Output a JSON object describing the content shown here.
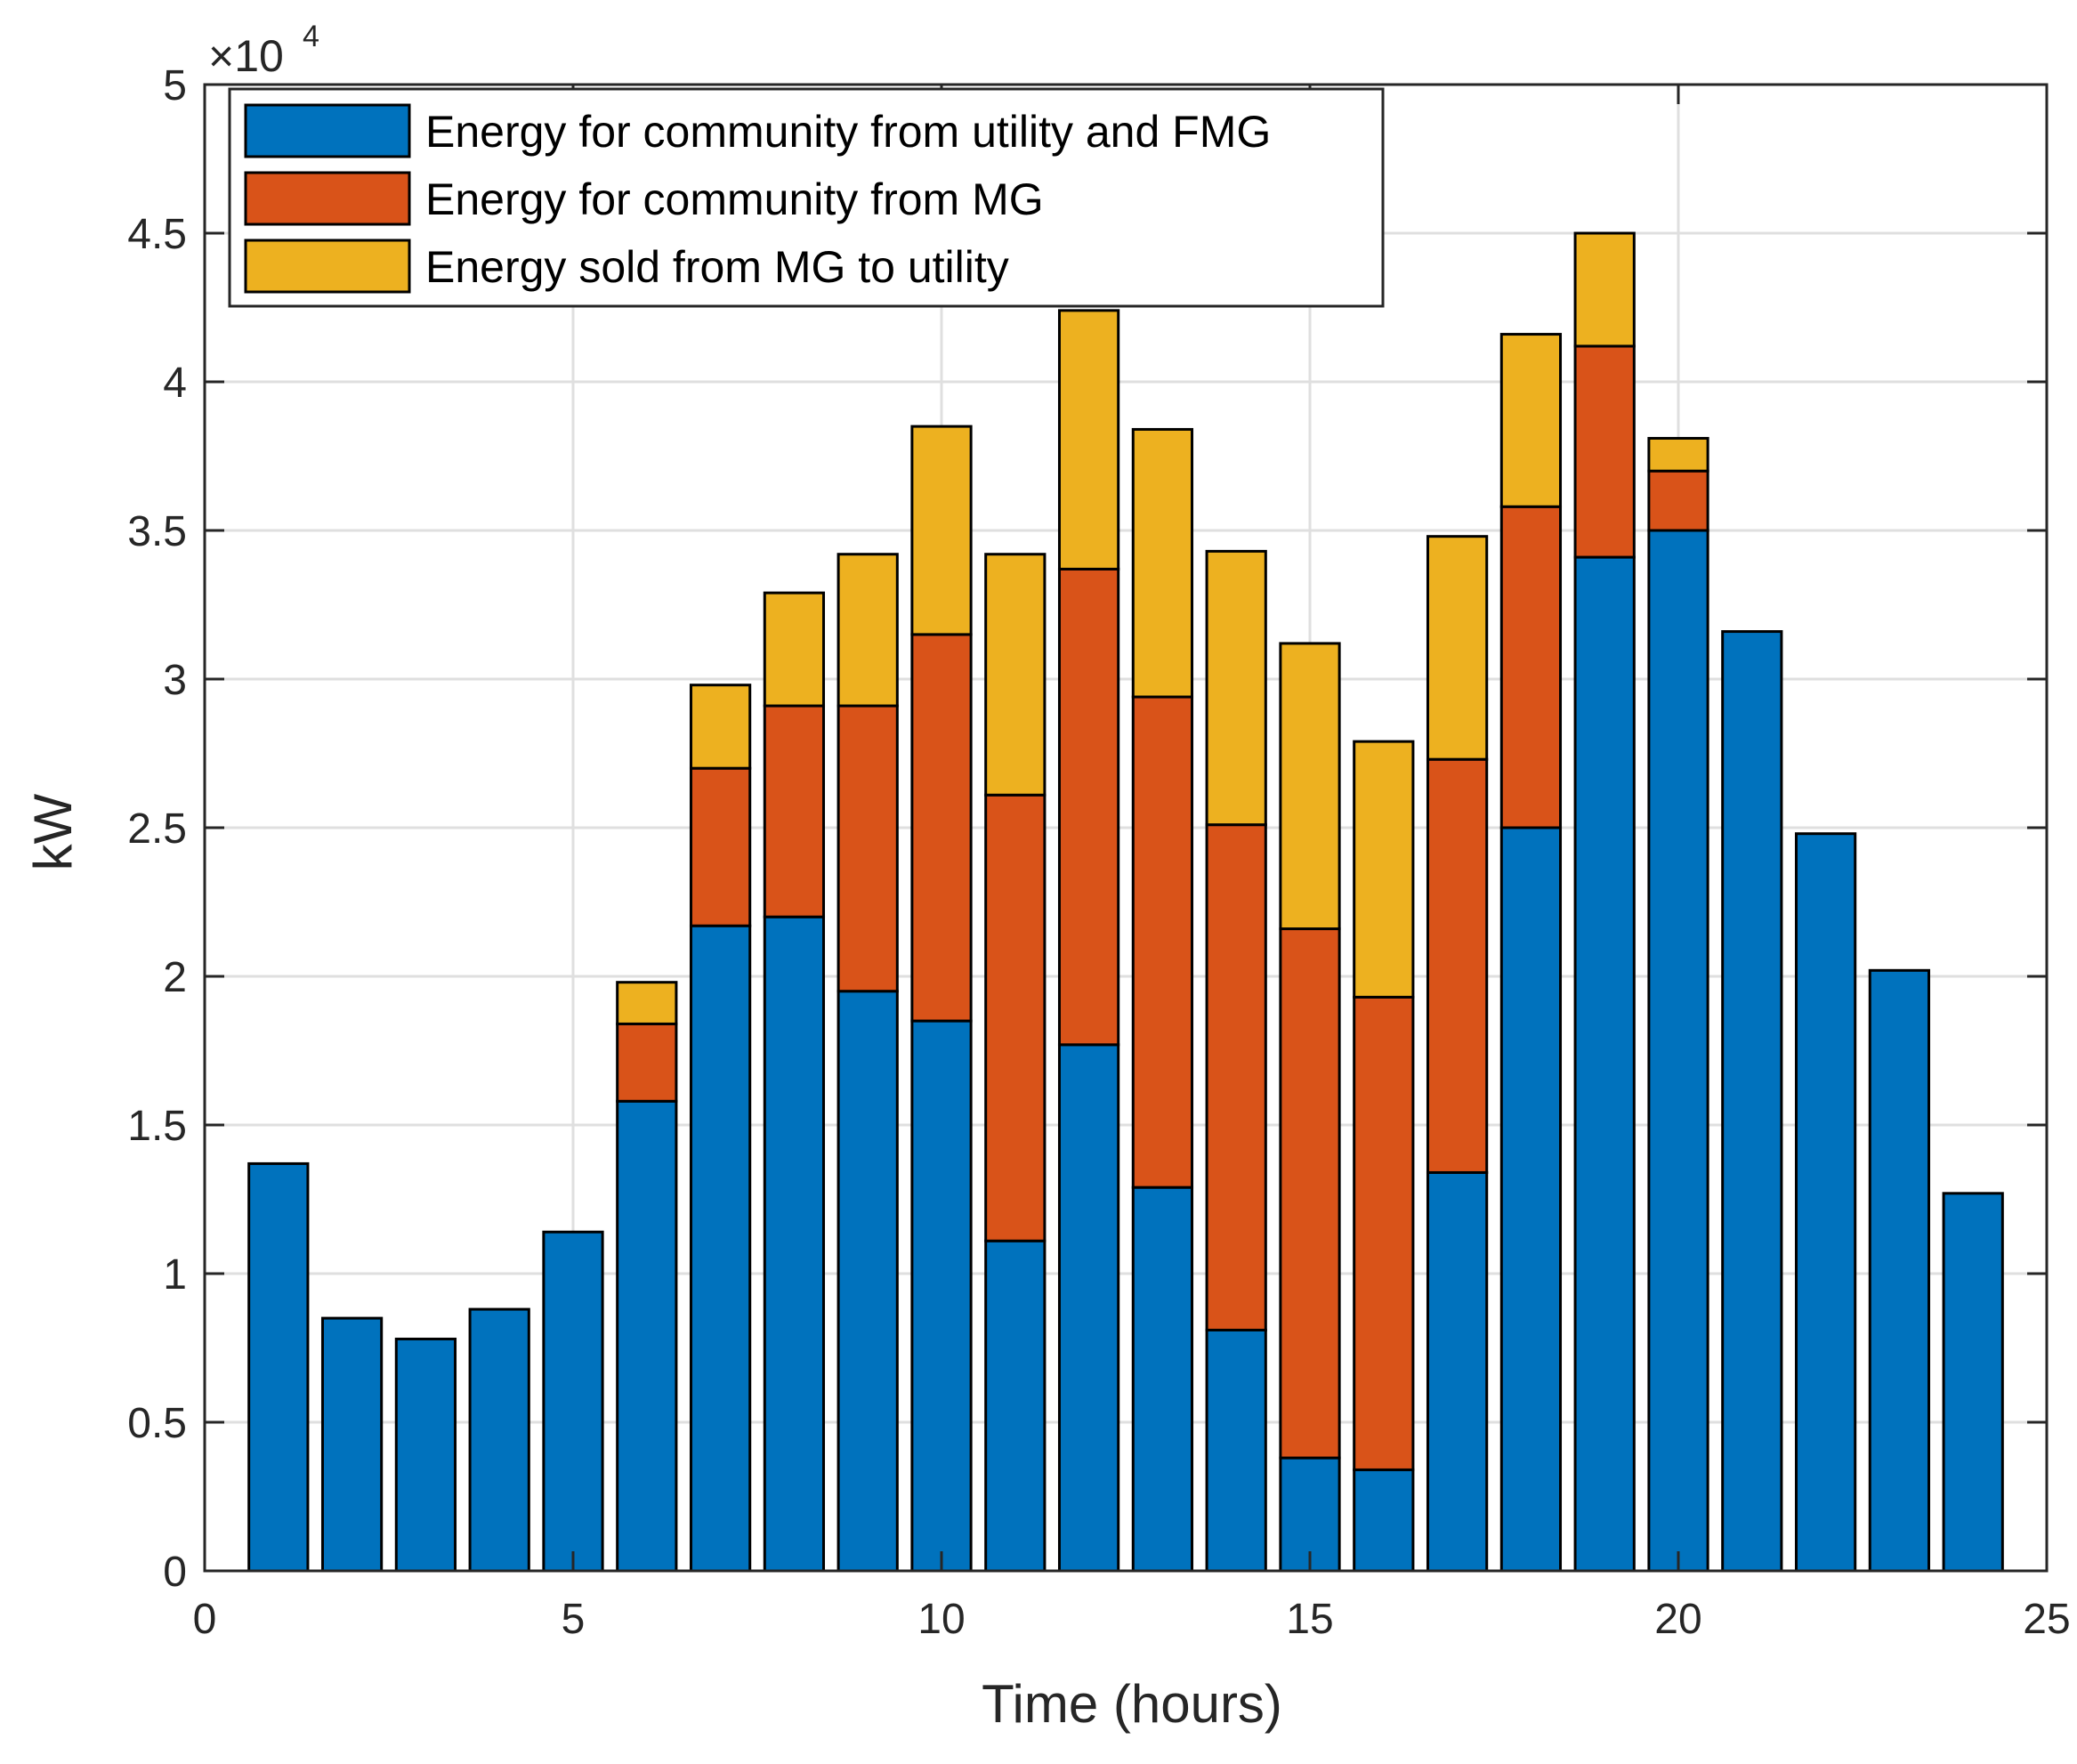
{
  "chart_data": {
    "type": "bar",
    "stacked": true,
    "title": "",
    "xlabel": "Time (hours)",
    "ylabel": "kW",
    "xlim": [
      0,
      25
    ],
    "ylim": [
      0,
      50000
    ],
    "xticks": [
      "0",
      "5",
      "10",
      "15",
      "20",
      "25"
    ],
    "yticks": [
      "0",
      "0.5",
      "1",
      "1.5",
      "2",
      "2.5",
      "3",
      "3.5",
      "4",
      "4.5",
      "5"
    ],
    "y_exponent": "×10",
    "y_exponent_power": "4",
    "grid": true,
    "legend_position": "top-left",
    "x": [
      1,
      2,
      3,
      4,
      5,
      6,
      7,
      8,
      9,
      10,
      11,
      12,
      13,
      14,
      15,
      16,
      17,
      18,
      19,
      20,
      21,
      22,
      23,
      24
    ],
    "series": [
      {
        "name": "Energy for community from utility and FMG",
        "color": "#0072BD",
        "values": [
          13700,
          8500,
          7800,
          8800,
          11400,
          15800,
          21700,
          22000,
          19500,
          18500,
          11100,
          17700,
          12900,
          8100,
          3800,
          3400,
          13400,
          25000,
          34100,
          35000,
          31600,
          24800,
          20200,
          12700
        ]
      },
      {
        "name": "Energy for community from MG",
        "color": "#D95319",
        "values": [
          0,
          0,
          0,
          0,
          0,
          2600,
          5300,
          7100,
          9600,
          13000,
          15000,
          16000,
          16500,
          17000,
          17800,
          15900,
          13900,
          10800,
          7100,
          2000,
          0,
          0,
          0,
          0
        ]
      },
      {
        "name": "Energy sold from MG to utility",
        "color": "#EDB120",
        "values": [
          0,
          0,
          0,
          0,
          0,
          1400,
          2800,
          3800,
          5100,
          7000,
          8100,
          8700,
          9000,
          9200,
          9600,
          8600,
          7500,
          5800,
          3800,
          1100,
          0,
          0,
          0,
          0
        ]
      }
    ]
  }
}
